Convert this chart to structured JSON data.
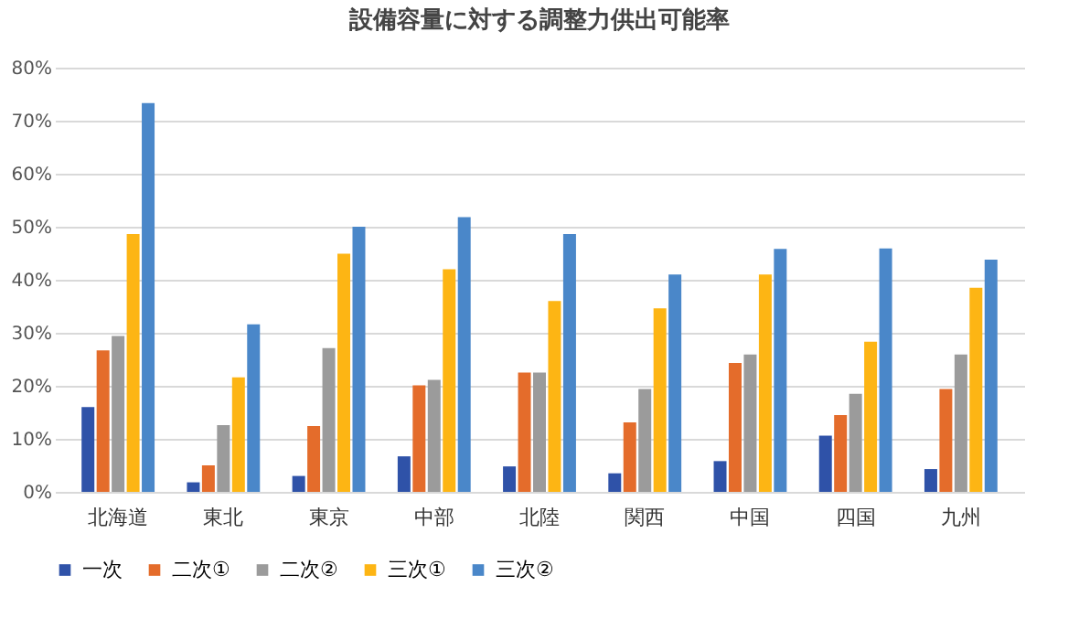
{
  "chart_data": {
    "type": "bar",
    "title": "設備容量に対する調整力供出可能率",
    "categories": [
      "北海道",
      "東北",
      "東京",
      "中部",
      "北陸",
      "関西",
      "中国",
      "四国",
      "九州"
    ],
    "series": [
      {
        "name": "一次",
        "color": "#2f52a8",
        "values": [
          16,
          1.8,
          3,
          6.7,
          4.8,
          3.5,
          5.8,
          10.6,
          4.3
        ]
      },
      {
        "name": "二次①",
        "color": "#e46c2b",
        "values": [
          26.7,
          5,
          12.4,
          20.1,
          22.5,
          13.1,
          24.3,
          14.5,
          19.4
        ]
      },
      {
        "name": "二次②",
        "color": "#9b9b9b",
        "values": [
          29.4,
          12.6,
          27.1,
          21.1,
          22.5,
          19.4,
          25.9,
          18.5,
          25.9
        ]
      },
      {
        "name": "三次①",
        "color": "#fdb514",
        "values": [
          48.6,
          21.6,
          44.9,
          42,
          36,
          34.6,
          41,
          28.3,
          38.5
        ]
      },
      {
        "name": "三次②",
        "color": "#4a87c9",
        "values": [
          73.3,
          31.6,
          50,
          51.8,
          48.6,
          41,
          45.8,
          45.9,
          43.8
        ]
      }
    ],
    "ylim": [
      0,
      80
    ],
    "yticks": [
      {
        "value": 0,
        "label": "0%"
      },
      {
        "value": 10,
        "label": "10%"
      },
      {
        "value": 20,
        "label": "20%"
      },
      {
        "value": 30,
        "label": "30%"
      },
      {
        "value": 40,
        "label": "40%"
      },
      {
        "value": 50,
        "label": "50%"
      },
      {
        "value": 60,
        "label": "60%"
      },
      {
        "value": 70,
        "label": "70%"
      },
      {
        "value": 80,
        "label": "80%"
      }
    ],
    "grid": "y",
    "legend": "bottom"
  }
}
